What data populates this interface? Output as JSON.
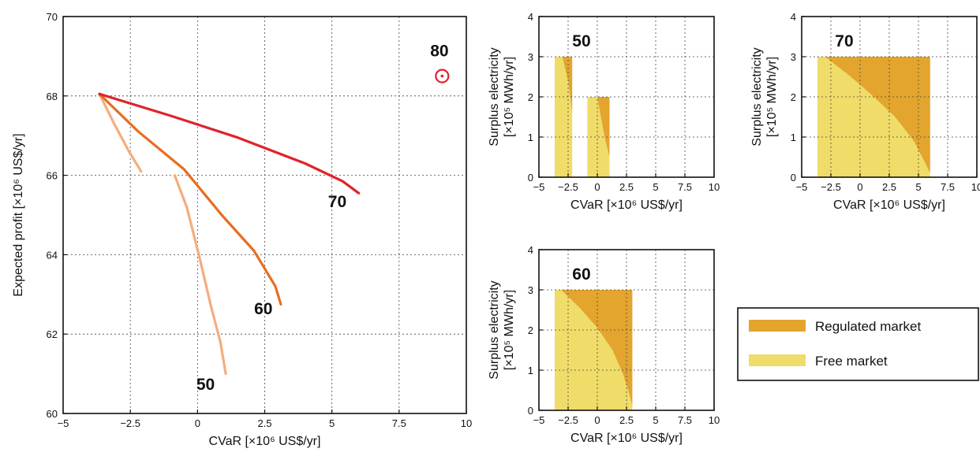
{
  "chart_data": [
    {
      "type": "line",
      "xlabel": "CVaR [×10⁶ US$/yr]",
      "ylabel": "Expected profit [×10⁶ US$/yr]",
      "xlim": [
        -5,
        10
      ],
      "ylim": [
        60,
        70
      ],
      "xticks": [
        -5,
        -2.5,
        0,
        2.5,
        5,
        7.5,
        10
      ],
      "xtick_labels": [
        "−5",
        "−2.5",
        "0",
        "2.5",
        "5",
        "7.5",
        "10"
      ],
      "yticks": [
        60,
        62,
        64,
        66,
        68,
        70
      ],
      "ytick_labels": [
        "60",
        "62",
        "64",
        "66",
        "68",
        "70"
      ],
      "grid": true,
      "series": [
        {
          "color": "#F4AD7E",
          "points": [
            [
              -3.65,
              68.05
            ],
            [
              -3.1,
              67.3
            ],
            [
              -2.55,
              66.6
            ],
            [
              -2.1,
              66.1
            ]
          ]
        },
        {
          "color": "#F4AD7E",
          "points": [
            [
              -0.85,
              66.0
            ],
            [
              -0.4,
              65.2
            ],
            [
              0.05,
              64.0
            ],
            [
              0.5,
              62.7
            ],
            [
              0.85,
              61.8
            ],
            [
              1.05,
              61.0
            ]
          ]
        },
        {
          "color": "#E86D1F",
          "points": [
            [
              -3.65,
              68.05
            ],
            [
              -2.2,
              67.1
            ],
            [
              -0.5,
              66.15
            ],
            [
              0.9,
              65.0
            ],
            [
              2.1,
              64.1
            ],
            [
              2.9,
              63.2
            ],
            [
              3.1,
              62.75
            ]
          ]
        },
        {
          "color": "#E0232B",
          "points": [
            [
              -3.65,
              68.05
            ],
            [
              -1.0,
              67.5
            ],
            [
              1.5,
              66.95
            ],
            [
              4.0,
              66.3
            ],
            [
              5.4,
              65.85
            ],
            [
              6.0,
              65.55
            ]
          ]
        }
      ],
      "annotations": [
        {
          "text": "50",
          "x": 0.3,
          "y": 60.6
        },
        {
          "text": "60",
          "x": 2.45,
          "y": 62.5
        },
        {
          "text": "70",
          "x": 5.2,
          "y": 65.2
        },
        {
          "text": "80",
          "x": 9.0,
          "y": 69.0
        }
      ],
      "marker": {
        "x": 9.1,
        "y": 68.5,
        "color": "#E0232B"
      }
    },
    {
      "type": "area",
      "xlabel": "CVaR [×10⁶ US$/yr]",
      "ylabel_line1": "Surplus electricity",
      "ylabel_line2": "[×10⁵ MWh/yr]",
      "xlim": [
        -5,
        10
      ],
      "ylim": [
        0,
        4
      ],
      "xticks": [
        -5,
        -2.5,
        0,
        2.5,
        5,
        7.5,
        10
      ],
      "xtick_labels": [
        "−5",
        "−2.5",
        "0",
        "2.5",
        "5",
        "7.5",
        "10"
      ],
      "yticks": [
        0,
        1,
        2,
        3,
        4
      ],
      "ytick_labels": [
        "0",
        "1",
        "2",
        "3",
        "4"
      ],
      "grid": true,
      "label": "50",
      "regions": [
        {
          "market": "free",
          "points": [
            [
              -3.65,
              0
            ],
            [
              -3.65,
              3
            ],
            [
              -3.0,
              3
            ],
            [
              -2.5,
              2.4
            ],
            [
              -2.15,
              1.6
            ],
            [
              -2.15,
              0
            ]
          ]
        },
        {
          "market": "regulated",
          "points": [
            [
              -3.0,
              3
            ],
            [
              -2.15,
              3
            ],
            [
              -2.15,
              1.6
            ],
            [
              -2.5,
              2.4
            ]
          ]
        },
        {
          "market": "free",
          "points": [
            [
              -0.85,
              0
            ],
            [
              -0.85,
              2
            ],
            [
              0.0,
              2
            ],
            [
              0.3,
              1.5
            ],
            [
              0.7,
              0.9
            ],
            [
              1.05,
              0.5
            ],
            [
              1.05,
              0
            ]
          ]
        },
        {
          "market": "regulated",
          "points": [
            [
              0.0,
              2
            ],
            [
              1.05,
              2
            ],
            [
              1.05,
              0.5
            ],
            [
              0.7,
              0.9
            ],
            [
              0.3,
              1.5
            ]
          ]
        }
      ]
    },
    {
      "type": "area",
      "xlabel": "CVaR [×10⁶ US$/yr]",
      "ylabel_line1": "Surplus electricity",
      "ylabel_line2": "[×10⁵ MWh/yr]",
      "xlim": [
        -5,
        10
      ],
      "ylim": [
        0,
        4
      ],
      "xticks": [
        -5,
        -2.5,
        0,
        2.5,
        5,
        7.5,
        10
      ],
      "xtick_labels": [
        "−5",
        "−2.5",
        "0",
        "2.5",
        "5",
        "7.5",
        "10"
      ],
      "yticks": [
        0,
        1,
        2,
        3,
        4
      ],
      "ytick_labels": [
        "0",
        "1",
        "2",
        "3",
        "4"
      ],
      "grid": true,
      "label": "70",
      "regions": [
        {
          "market": "free",
          "points": [
            [
              -3.65,
              0
            ],
            [
              -3.65,
              3
            ],
            [
              -3.0,
              3
            ],
            [
              -1.0,
              2.55
            ],
            [
              1.0,
              2.05
            ],
            [
              3.0,
              1.5
            ],
            [
              4.6,
              0.9
            ],
            [
              5.5,
              0.4
            ],
            [
              6.0,
              0.1
            ],
            [
              6.0,
              0
            ]
          ]
        },
        {
          "market": "regulated",
          "points": [
            [
              -3.0,
              3
            ],
            [
              6.0,
              3
            ],
            [
              6.0,
              0.1
            ],
            [
              5.5,
              0.4
            ],
            [
              4.6,
              0.9
            ],
            [
              3.0,
              1.5
            ],
            [
              1.0,
              2.05
            ],
            [
              -1.0,
              2.55
            ]
          ]
        }
      ]
    },
    {
      "type": "area",
      "xlabel": "CVaR [×10⁶ US$/yr]",
      "ylabel_line1": "Surplus electricity",
      "ylabel_line2": "[×10⁵ MWh/yr]",
      "xlim": [
        -5,
        10
      ],
      "ylim": [
        0,
        4
      ],
      "xticks": [
        -5,
        -2.5,
        0,
        2.5,
        5,
        7.5,
        10
      ],
      "xtick_labels": [
        "−5",
        "−2.5",
        "0",
        "2.5",
        "5",
        "7.5",
        "10"
      ],
      "yticks": [
        0,
        1,
        2,
        3,
        4
      ],
      "ytick_labels": [
        "0",
        "1",
        "2",
        "3",
        "4"
      ],
      "grid": true,
      "label": "60",
      "regions": [
        {
          "market": "free",
          "points": [
            [
              -3.65,
              0
            ],
            [
              -3.65,
              3
            ],
            [
              -3.1,
              3
            ],
            [
              -1.5,
              2.55
            ],
            [
              0.0,
              2.05
            ],
            [
              1.3,
              1.5
            ],
            [
              2.2,
              0.9
            ],
            [
              2.75,
              0.4
            ],
            [
              3.0,
              0.1
            ],
            [
              3.0,
              0
            ]
          ]
        },
        {
          "market": "regulated",
          "points": [
            [
              -3.1,
              3
            ],
            [
              3.0,
              3
            ],
            [
              3.0,
              0.1
            ],
            [
              2.75,
              0.4
            ],
            [
              2.2,
              0.9
            ],
            [
              1.3,
              1.5
            ],
            [
              0.0,
              2.05
            ],
            [
              -1.5,
              2.55
            ]
          ]
        }
      ]
    }
  ],
  "legend": {
    "placement": "bottom-right",
    "items": [
      {
        "label": "Regulated market",
        "market": "regulated",
        "color": "#E3A52D"
      },
      {
        "label": "Free market",
        "market": "free",
        "color": "#F0DC68"
      }
    ]
  }
}
